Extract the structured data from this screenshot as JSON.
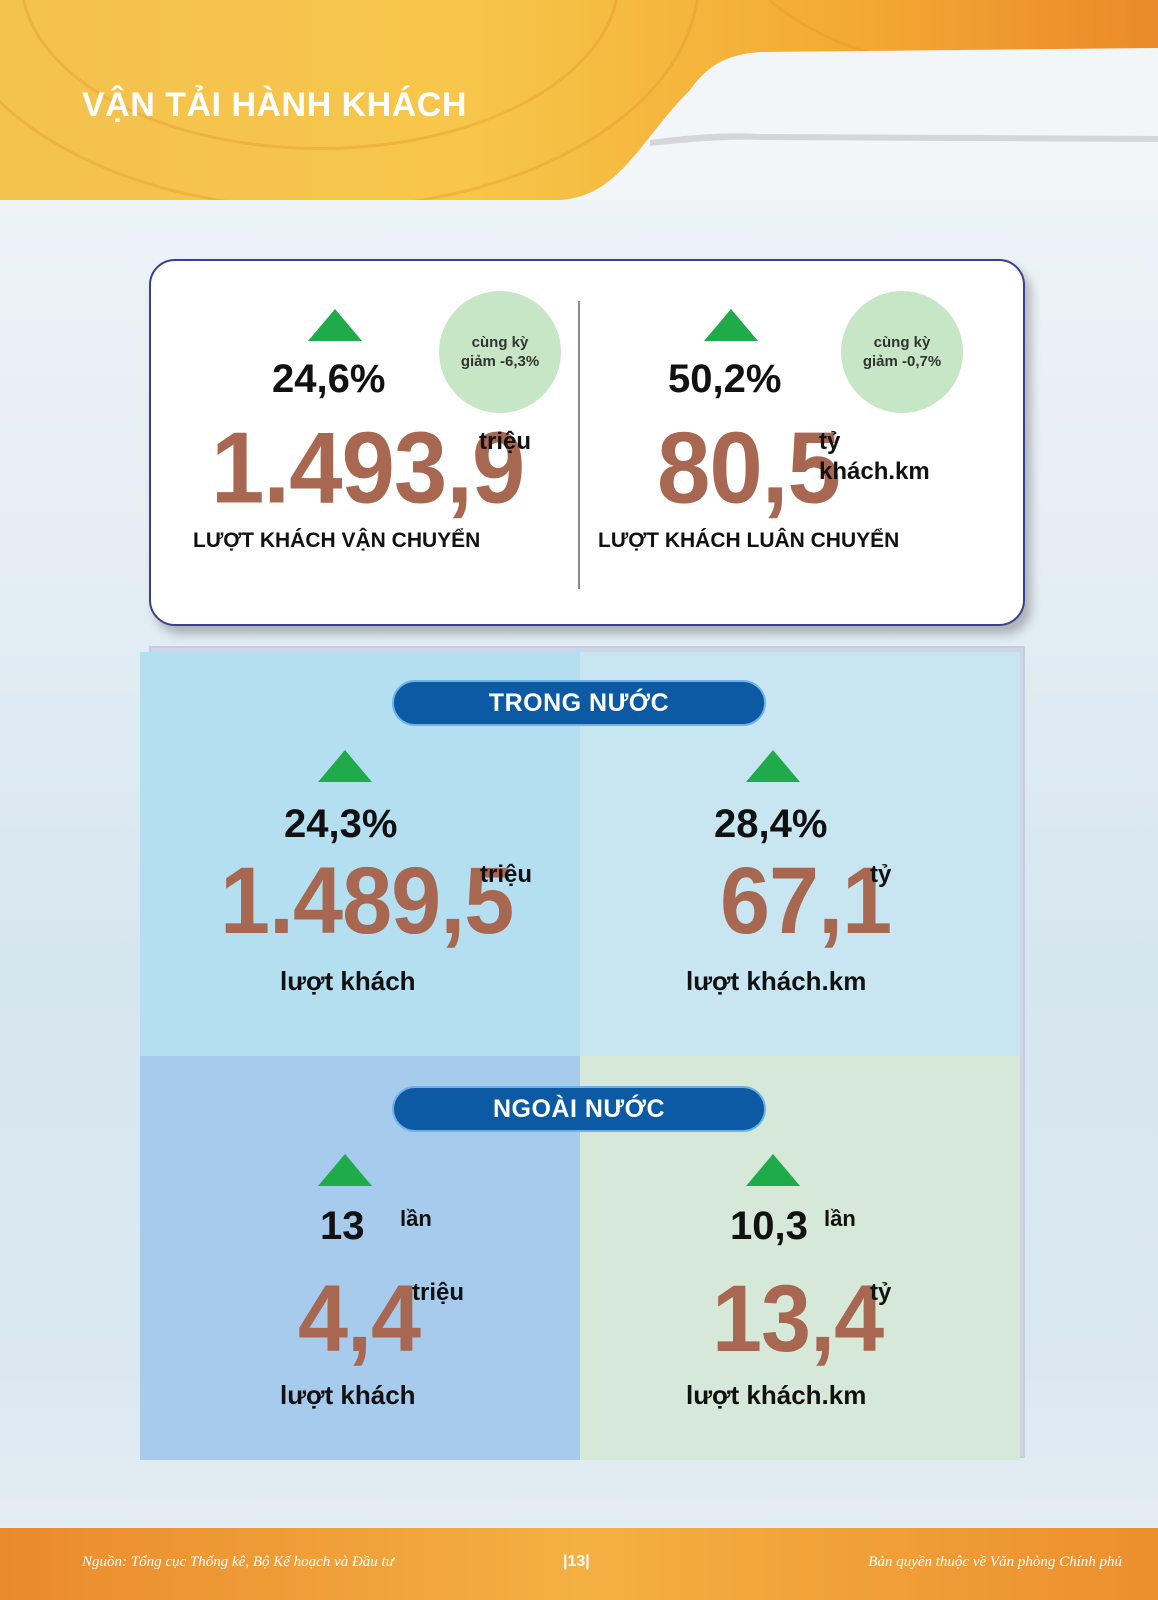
{
  "header": {
    "title": "VẬN TẢI HÀNH KHÁCH"
  },
  "summary": {
    "left": {
      "growth": "24,6%",
      "bubble_line1": "cùng  kỳ",
      "bubble_line2": "giảm -6,3%",
      "value": "1.493,9",
      "unit": "triệu",
      "caption": "LƯỢT KHÁCH VẬN CHUYỂN"
    },
    "right": {
      "growth": "50,2%",
      "bubble_line1": "cùng kỳ",
      "bubble_line2": "giảm -0,7%",
      "value": "80,5",
      "unit_line1": "tỷ",
      "unit_line2": "khách.km",
      "caption": "LƯỢT KHÁCH LUÂN CHUYỂN"
    }
  },
  "domestic": {
    "label": "TRONG NƯỚC",
    "left": {
      "growth": "24,3%",
      "value": "1.489,5",
      "unit": "triệu",
      "caption": "lượt khách"
    },
    "right": {
      "growth": "28,4%",
      "value": "67,1",
      "unit": "tỷ",
      "caption": "lượt khách.km"
    }
  },
  "foreign": {
    "label": "NGOÀI NƯỚC",
    "left": {
      "growth": "13",
      "growth_unit": "lần",
      "value": "4,4",
      "unit": "triệu",
      "caption": "lượt khách"
    },
    "right": {
      "growth": "10,3",
      "growth_unit": "lần",
      "value": "13,4",
      "unit": "tỷ",
      "caption": "lượt khách.km"
    }
  },
  "footer": {
    "source": "Nguồn: Tổng cục Thống kê, Bộ Kế hoạch và Đầu tư",
    "page": "|13|",
    "copyright": "Bản quyền thuộc về Văn phòng Chính phủ"
  },
  "colors": {
    "accent_value": "#a86750",
    "arrow_up": "#1fab4a",
    "pill": "#0c5aa3"
  }
}
